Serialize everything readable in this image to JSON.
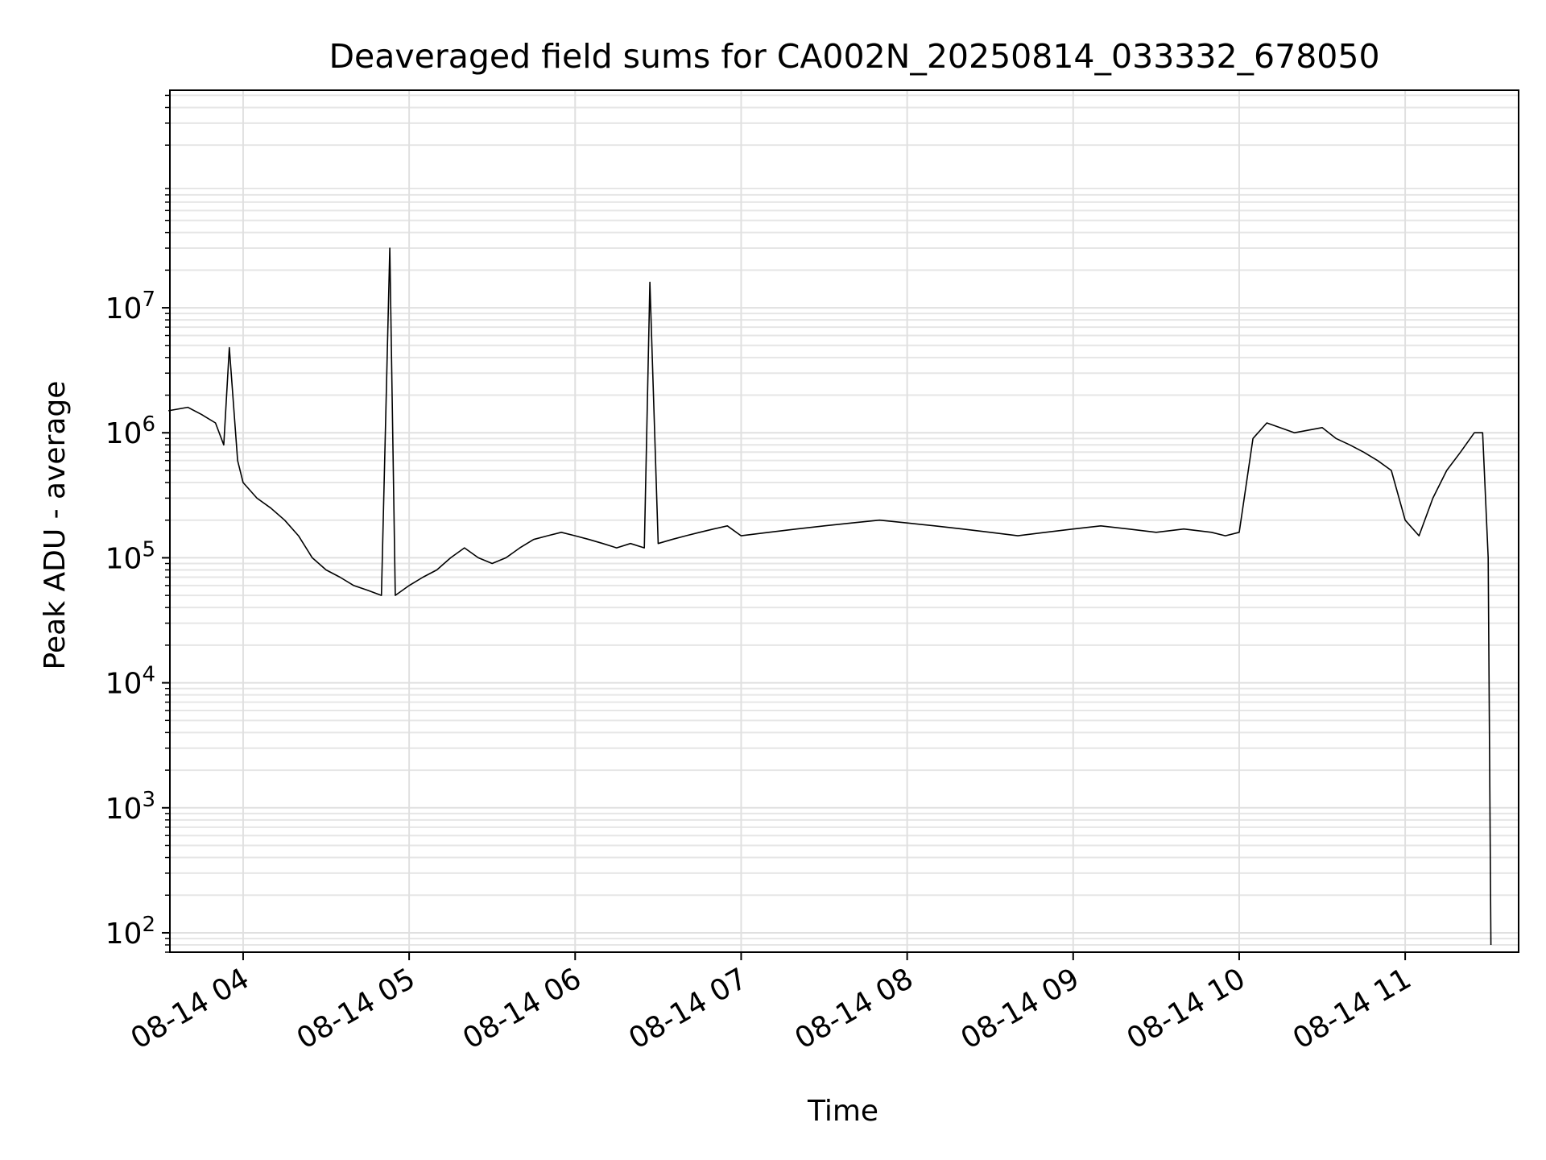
{
  "chart_data": {
    "type": "line",
    "title": "Deaveraged field sums for CA002N_20250814_033332_678050",
    "xlabel": "Time",
    "ylabel": "Peak ADU - average",
    "yscale": "log",
    "ylim": [
      70,
      550000000
    ],
    "xlim": [
      "2025-08-14 03:33:32",
      "2025-08-14 11:41:00"
    ],
    "grid": true,
    "x_tick_labels": [
      "08-14 04",
      "08-14 05",
      "08-14 06",
      "08-14 07",
      "08-14 08",
      "08-14 09",
      "08-14 10",
      "08-14 11"
    ],
    "y_tick_labels": [
      {
        "base": "10",
        "exp": "2"
      },
      {
        "base": "10",
        "exp": "3"
      },
      {
        "base": "10",
        "exp": "4"
      },
      {
        "base": "10",
        "exp": "5"
      },
      {
        "base": "10",
        "exp": "6"
      },
      {
        "base": "10",
        "exp": "7"
      }
    ],
    "line_color": "#000000",
    "series": [
      {
        "x": [
          "03:33",
          "03:40",
          "03:45",
          "03:50",
          "03:53",
          "03:55",
          "03:58",
          "04:00",
          "04:05",
          "04:10",
          "04:15",
          "04:20",
          "04:25",
          "04:30",
          "04:35",
          "04:40",
          "04:45",
          "04:50",
          "04:53",
          "04:55",
          "05:00",
          "05:05",
          "05:10",
          "05:15",
          "05:20",
          "05:25",
          "05:30",
          "05:35",
          "05:40",
          "05:45",
          "05:50",
          "05:55",
          "06:00",
          "06:05",
          "06:10",
          "06:15",
          "06:20",
          "06:25",
          "06:27",
          "06:30",
          "06:35",
          "06:40",
          "06:45",
          "06:50",
          "06:55",
          "07:00",
          "07:10",
          "07:20",
          "07:30",
          "07:40",
          "07:50",
          "08:00",
          "08:10",
          "08:20",
          "08:30",
          "08:40",
          "08:50",
          "09:00",
          "09:10",
          "09:20",
          "09:30",
          "09:40",
          "09:50",
          "09:55",
          "10:00",
          "10:05",
          "10:10",
          "10:20",
          "10:30",
          "10:35",
          "10:40",
          "10:45",
          "10:50",
          "10:55",
          "11:00",
          "11:05",
          "11:10",
          "11:15",
          "11:20",
          "11:25",
          "11:28",
          "11:30",
          "11:31"
        ],
        "y": [
          1500000,
          1600000,
          1400000,
          1200000,
          800000,
          4800000,
          600000,
          400000,
          300000,
          250000,
          200000,
          150000,
          100000,
          80000,
          70000,
          60000,
          55000,
          50000,
          30000000,
          50000,
          60000,
          70000,
          80000,
          100000,
          120000,
          100000,
          90000,
          100000,
          120000,
          140000,
          150000,
          160000,
          150000,
          140000,
          130000,
          120000,
          130000,
          120000,
          16000000,
          130000,
          140000,
          150000,
          160000,
          170000,
          180000,
          150000,
          160000,
          170000,
          180000,
          190000,
          200000,
          190000,
          180000,
          170000,
          160000,
          150000,
          160000,
          170000,
          180000,
          170000,
          160000,
          170000,
          160000,
          150000,
          160000,
          900000,
          1200000,
          1000000,
          1100000,
          900000,
          800000,
          700000,
          600000,
          500000,
          200000,
          150000,
          300000,
          500000,
          700000,
          1000000,
          1000000,
          100000,
          80
        ]
      }
    ],
    "annotations": []
  }
}
